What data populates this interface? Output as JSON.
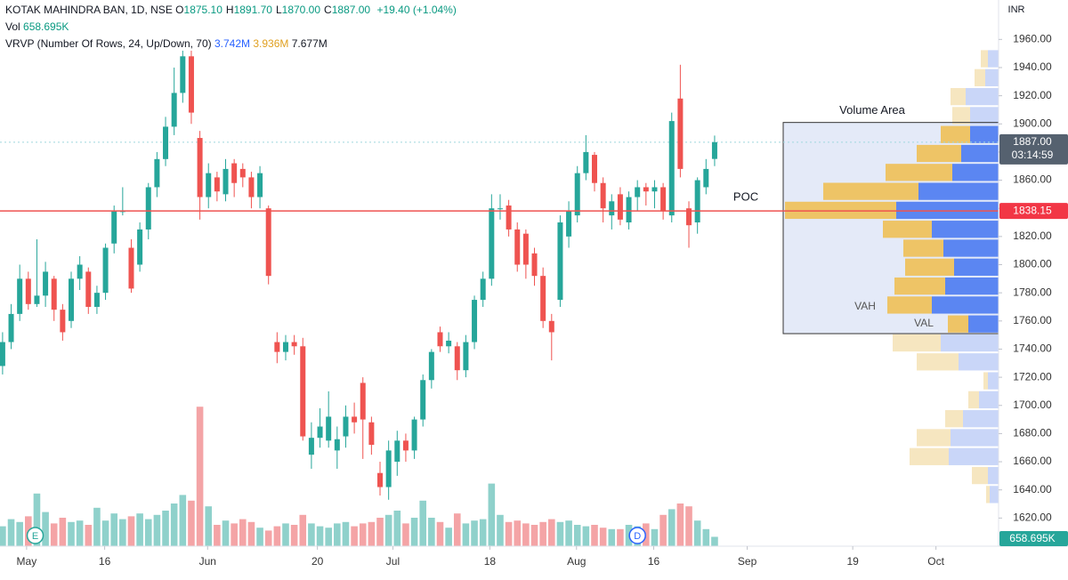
{
  "chart_data": {
    "type": "candlestick",
    "header": {
      "symbol": "KOTAK MAHINDRA BAN, 1D, NSE",
      "ohlc": [
        {
          "label": "O",
          "value": "1875.10"
        },
        {
          "label": "H",
          "value": "1891.70"
        },
        {
          "label": "L",
          "value": "1870.00"
        },
        {
          "label": "C",
          "value": "1887.00"
        }
      ],
      "change": "+19.40 (+1.04%)",
      "vol_label": "Vol",
      "vol": "658.695K",
      "vrvp": "VRVP (Number Of Rows, 24, Up/Down, 70)",
      "vrvp_up": "3.742M",
      "vrvp_down": "3.936M",
      "vrvp_total": "7.677M"
    },
    "currency": "INR",
    "open": [
      1728,
      1745,
      1765,
      1790,
      1772,
      1778,
      1790,
      1768,
      1760,
      1790,
      1795,
      1770,
      1780,
      1815,
      1838,
      1812,
      1800,
      1825,
      1855,
      1875,
      1898,
      1922,
      1948,
      1890,
      1848,
      1862,
      1850,
      1872,
      1868,
      1862,
      1848,
      1840,
      1745,
      1738,
      1745,
      1742,
      1665,
      1677,
      1675,
      1668,
      1678,
      1692,
      1716,
      1688,
      1652,
      1642,
      1660,
      1675,
      1668,
      1690,
      1718,
      1752,
      1742,
      1742,
      1725,
      1745,
      1775,
      1790,
      1840,
      1842,
      1825,
      1822,
      1808,
      1792,
      1760,
      1775,
      1820,
      1835,
      1865,
      1878,
      1858,
      1835,
      1850,
      1830,
      1848,
      1855,
      1852,
      1855,
      1835,
      1918,
      1840,
      1830,
      1855,
      1875.1
    ],
    "high": [
      1752,
      1772,
      1800,
      1795,
      1818,
      1802,
      1792,
      1772,
      1795,
      1806,
      1798,
      1785,
      1815,
      1842,
      1855,
      1818,
      1830,
      1858,
      1880,
      1905,
      1940,
      1952,
      1952,
      1895,
      1872,
      1866,
      1875,
      1875,
      1872,
      1866,
      1870,
      1842,
      1752,
      1750,
      1750,
      1748,
      1688,
      1698,
      1710,
      1685,
      1700,
      1702,
      1720,
      1692,
      1660,
      1675,
      1682,
      1680,
      1692,
      1722,
      1740,
      1756,
      1752,
      1745,
      1750,
      1778,
      1795,
      1850,
      1850,
      1846,
      1830,
      1825,
      1812,
      1798,
      1765,
      1835,
      1845,
      1870,
      1892,
      1880,
      1862,
      1850,
      1855,
      1852,
      1860,
      1858,
      1860,
      1858,
      1908,
      1942,
      1845,
      1862,
      1875,
      1891.7
    ],
    "low": [
      1722,
      1740,
      1760,
      1768,
      1770,
      1770,
      1760,
      1746,
      1755,
      1782,
      1765,
      1765,
      1775,
      1808,
      1835,
      1780,
      1795,
      1818,
      1848,
      1870,
      1892,
      1915,
      1900,
      1832,
      1840,
      1845,
      1845,
      1848,
      1855,
      1840,
      1840,
      1786,
      1730,
      1732,
      1736,
      1675,
      1655,
      1670,
      1670,
      1655,
      1670,
      1680,
      1662,
      1665,
      1636,
      1633,
      1650,
      1660,
      1662,
      1685,
      1712,
      1738,
      1737,
      1718,
      1720,
      1740,
      1770,
      1785,
      1832,
      1820,
      1795,
      1790,
      1785,
      1755,
      1732,
      1770,
      1812,
      1830,
      1860,
      1852,
      1830,
      1825,
      1828,
      1825,
      1838,
      1842,
      1840,
      1832,
      1830,
      1862,
      1812,
      1822,
      1850,
      1870.0
    ],
    "close": [
      1745,
      1765,
      1790,
      1772,
      1778,
      1795,
      1768,
      1752,
      1790,
      1800,
      1770,
      1780,
      1812,
      1838,
      1838,
      1783,
      1825,
      1855,
      1875,
      1898,
      1922,
      1948,
      1908,
      1848,
      1865,
      1852,
      1868,
      1858,
      1862,
      1848,
      1865,
      1792,
      1738,
      1745,
      1742,
      1678,
      1677,
      1685,
      1692,
      1676,
      1692,
      1688,
      1690,
      1672,
      1642,
      1668,
      1675,
      1668,
      1690,
      1718,
      1738,
      1742,
      1746,
      1725,
      1745,
      1775,
      1790,
      1840,
      1840,
      1825,
      1800,
      1800,
      1792,
      1760,
      1752,
      1830,
      1838,
      1865,
      1880,
      1858,
      1840,
      1845,
      1832,
      1848,
      1855,
      1852,
      1855,
      1838,
      1902,
      1868,
      1828,
      1860,
      1868,
      1887.0
    ],
    "volume": [
      1400,
      1900,
      1700,
      2100,
      3700,
      2400,
      1600,
      2000,
      1700,
      1800,
      1500,
      2700,
      1800,
      2300,
      1900,
      2100,
      2300,
      1900,
      2200,
      2500,
      3000,
      3600,
      3200,
      9800,
      2800,
      1500,
      1800,
      1600,
      1900,
      1700,
      1300,
      1100,
      1400,
      1600,
      1500,
      2200,
      1600,
      1400,
      1300,
      1600,
      1700,
      1400,
      1600,
      1700,
      2000,
      2200,
      2500,
      1600,
      2000,
      3200,
      2000,
      1700,
      1300,
      2300,
      1600,
      1800,
      1900,
      4400,
      2200,
      1700,
      1800,
      1600,
      1500,
      1700,
      1900,
      1700,
      1800,
      1500,
      1400,
      1500,
      1300,
      1200,
      1200,
      1500,
      1400,
      1600,
      1200,
      2200,
      2600,
      3000,
      2800,
      1800,
      1200,
      658.695
    ],
    "volume_label": "658.695K",
    "vlim": [
      0,
      10000
    ],
    "up_color": "#26a69a",
    "down_color": "#ef5350",
    "xlim": [
      -0.3,
      116.1
    ],
    "xticks": [
      {
        "value": 2.8,
        "label": "May"
      },
      {
        "value": 11.9,
        "label": "16"
      },
      {
        "value": 23.9,
        "label": "Jun"
      },
      {
        "value": 36.7,
        "label": "20"
      },
      {
        "value": 45.5,
        "label": "Jul"
      },
      {
        "value": 56.8,
        "label": "18"
      },
      {
        "value": 66.9,
        "label": "Aug"
      },
      {
        "value": 75.9,
        "label": "16"
      },
      {
        "value": 86.8,
        "label": "Sep"
      },
      {
        "value": 99.1,
        "label": "19"
      },
      {
        "value": 108.8,
        "label": "Oct"
      }
    ],
    "ylim": [
      1600,
      1988
    ],
    "yticks": [
      {
        "value": 1620,
        "label": "1620.00"
      },
      {
        "value": 1640,
        "label": "1640.00"
      },
      {
        "value": 1660,
        "label": "1660.00"
      },
      {
        "value": 1680,
        "label": "1680.00"
      },
      {
        "value": 1700,
        "label": "1700.00"
      },
      {
        "value": 1720,
        "label": "1720.00"
      },
      {
        "value": 1740,
        "label": "1740.00"
      },
      {
        "value": 1760,
        "label": "1760.00"
      },
      {
        "value": 1780,
        "label": "1780.00"
      },
      {
        "value": 1800,
        "label": "1800.00"
      },
      {
        "value": 1820,
        "label": "1820.00"
      },
      {
        "value": 1840,
        "label": "1840.00"
      },
      {
        "value": 1860,
        "label": "1860.00"
      },
      {
        "value": 1880,
        "label": "1880.00"
      },
      {
        "value": 1900,
        "label": "1900.00"
      },
      {
        "value": 1920,
        "label": "1920.00"
      },
      {
        "value": 1940,
        "label": "1940.00"
      },
      {
        "value": 1960,
        "label": "1960.00"
      }
    ],
    "events": [
      {
        "label": "E",
        "index": 3.8
      },
      {
        "label": "D",
        "index": 74
      }
    ],
    "current_price": {
      "value": 1887,
      "label": "1887.00",
      "countdown": "03:14:59"
    },
    "poc": {
      "value": 1838.15,
      "label": "1838.15",
      "text": "POC"
    },
    "profile": {
      "range": [
        1630,
        1953
      ],
      "up": [
        12,
        15,
        37,
        32,
        32,
        42,
        52,
        90,
        115,
        75,
        62,
        50,
        60,
        75,
        34,
        65,
        45,
        12,
        22,
        40,
        54,
        56,
        12,
        10
      ],
      "down": [
        8,
        12,
        17,
        20,
        33,
        50,
        75,
        107,
        125,
        55,
        45,
        55,
        57,
        50,
        23,
        54,
        47,
        5,
        12,
        20,
        38,
        44,
        18,
        4
      ],
      "up_color": "#5b86f2",
      "down_color": "#eec466",
      "up_light": "#c9d6f8",
      "down_light": "#f6e6c0"
    },
    "value_area": {
      "range": [
        1751,
        1901
      ],
      "title": "Volume Area",
      "high_text": "VAH",
      "low_text": "VAL"
    }
  }
}
